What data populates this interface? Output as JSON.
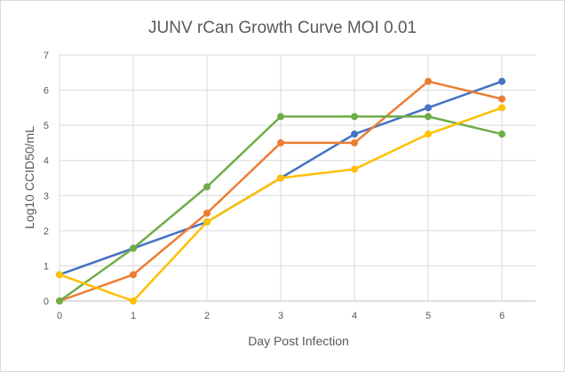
{
  "chart_data": {
    "type": "line",
    "title": "JUNV rCan Growth Curve MOI 0.01",
    "xlabel": "Day Post Infection",
    "ylabel": "Log10 CCID50/mL",
    "x": [
      0,
      1,
      2,
      3,
      4,
      5,
      6
    ],
    "xlim": [
      0,
      6
    ],
    "ylim": [
      0,
      7
    ],
    "xticks": [
      "0",
      "1",
      "2",
      "3",
      "4",
      "5",
      "6"
    ],
    "yticks": [
      "0",
      "1",
      "2",
      "3",
      "4",
      "5",
      "6",
      "7"
    ],
    "grid": true,
    "legend": "none",
    "series": [
      {
        "color": "#4472c4",
        "values": [
          0.75,
          1.5,
          2.25,
          3.5,
          4.75,
          5.5,
          6.25
        ]
      },
      {
        "color": "#ed7d31",
        "values": [
          0,
          0.75,
          2.5,
          4.5,
          4.5,
          6.25,
          5.75
        ]
      },
      {
        "color": "#70ad47",
        "values": [
          0,
          1.5,
          3.25,
          5.25,
          5.25,
          5.25,
          4.75
        ]
      },
      {
        "color": "#ffc000",
        "values": [
          0.75,
          0,
          2.25,
          3.5,
          3.75,
          4.75,
          5.5
        ]
      }
    ]
  }
}
